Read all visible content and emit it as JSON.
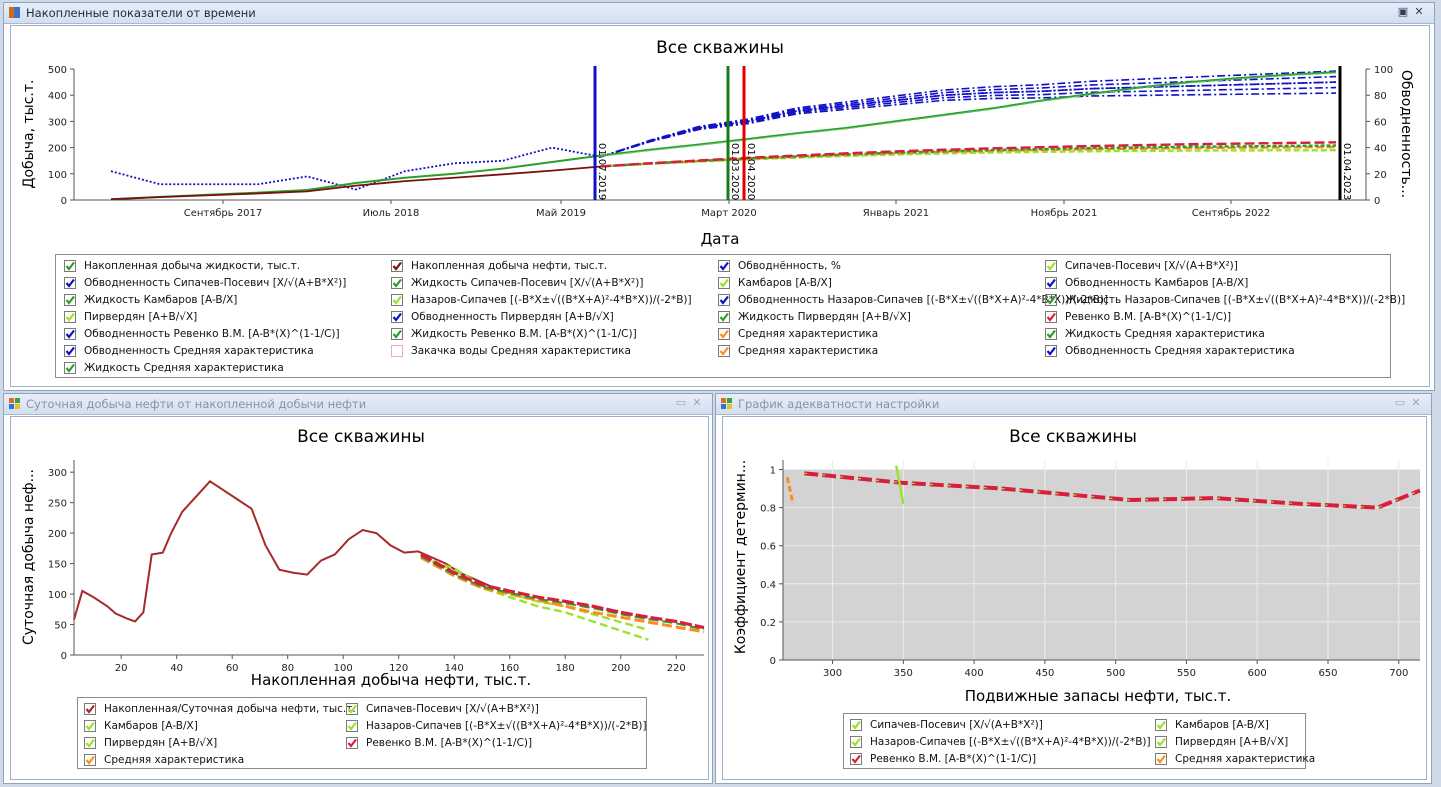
{
  "colors": {
    "blue": "#1010c8",
    "darkred": "#7a1010",
    "green": "#2aa02a",
    "lime": "#9be22a",
    "orange": "#ff8c1a",
    "crimson": "#d81e3c",
    "gray": "#d3d3d3",
    "black": "#000000"
  },
  "top_panel": {
    "title": "Накопленные показатели от времени",
    "chart_title": "Все скважины",
    "xlabel": "Дата",
    "ylabel": "Добыча, тыс.т.",
    "y2label": "Обводненность...",
    "xticks": [
      "Сентябрь 2017",
      "Июль 2018",
      "Май 2019",
      "Март 2020",
      "Январь 2021",
      "Ноябрь 2021",
      "Сентябрь 2022"
    ],
    "yticks": [
      "0",
      "100",
      "200",
      "300",
      "400",
      "500"
    ],
    "y2ticks": [
      "0",
      "20",
      "40",
      "60",
      "80",
      "100"
    ],
    "vlines": [
      {
        "label": "01.07.2019",
        "color": "#1010c8"
      },
      {
        "label": "01.03.2020",
        "color": "#1a7a1a"
      },
      {
        "label": "01.04.2020",
        "color": "#e00000"
      },
      {
        "label": "01.04.2023",
        "color": "#000000"
      }
    ],
    "legend": [
      {
        "label": "Накопленная добыча жидкости, тыс.т.",
        "color": "#2aa02a"
      },
      {
        "label": "Накопленная добыча нефти, тыс.т.",
        "color": "#7a1010"
      },
      {
        "label": "Обводнённость, %",
        "color": "#1010c8"
      },
      {
        "label": "Сипачев-Посевич [X/√(A+B*X²)]",
        "color": "#9be22a"
      },
      {
        "label": "Обводненность Сипачев-Посевич [X/√(A+B*X²)]",
        "color": "#1010c8"
      },
      {
        "label": "Жидкость Сипачев-Посевич [X/√(A+B*X²)]",
        "color": "#2aa02a"
      },
      {
        "label": "Камбаров [A-B/X]",
        "color": "#9be22a"
      },
      {
        "label": "Обводненность Камбаров [A-B/X]",
        "color": "#1010c8"
      },
      {
        "label": "Жидкость Камбаров [A-B/X]",
        "color": "#2aa02a"
      },
      {
        "label": "Назаров-Сипачев [(-B*X±√((B*X+A)²-4*B*X))/(-2*B)]",
        "color": "#9be22a"
      },
      {
        "label": "Обводненность Назаров-Сипачев [(-B*X±√((B*X+A)²-4*B*X))/(-2*B)]",
        "color": "#1010c8"
      },
      {
        "label": "Жидкость Назаров-Сипачев [(-B*X±√((B*X+A)²-4*B*X))/(-2*B)]",
        "color": "#2aa02a"
      },
      {
        "label": "Пирвердян [A+B/√X]",
        "color": "#9be22a"
      },
      {
        "label": "Обводненность Пирвердян [A+B/√X]",
        "color": "#1010c8"
      },
      {
        "label": "Жидкость Пирвердян [A+B/√X]",
        "color": "#2aa02a"
      },
      {
        "label": "Ревенко В.М. [A-B*(X)^(1-1/C)]",
        "color": "#d81e3c"
      },
      {
        "label": "Обводненность Ревенко В.М. [A-B*(X)^(1-1/C)]",
        "color": "#1010c8"
      },
      {
        "label": "Жидкость Ревенко В.М. [A-B*(X)^(1-1/C)]",
        "color": "#2aa02a"
      },
      {
        "label": "Средняя характеристика",
        "color": "#ff8c1a"
      },
      {
        "label": "Жидкость Средняя характеристика",
        "color": "#2aa02a"
      },
      {
        "label": "Обводненность Средняя характеристика",
        "color": "#1010c8"
      },
      {
        "label": "Закачка воды Средняя характеристика",
        "color": "#f4a6c8",
        "unchecked": true
      },
      {
        "label": "Средняя характеристика",
        "color": "#ff8c1a"
      },
      {
        "label": "Обводненность Средняя характеристика",
        "color": "#1010c8"
      },
      {
        "label": "Жидкость Средняя характеристика",
        "color": "#2aa02a"
      }
    ]
  },
  "left_panel": {
    "title": "Суточная добыча нефти от накопленной добычи нефти",
    "chart_title": "Все скважины",
    "xlabel": "Накопленная добыча нефти, тыс.т.",
    "ylabel": "Суточная добыча неф...",
    "xticks": [
      "20",
      "40",
      "60",
      "80",
      "100",
      "120",
      "140",
      "160",
      "180",
      "200",
      "220"
    ],
    "yticks": [
      "0",
      "50",
      "100",
      "150",
      "200",
      "250",
      "300"
    ],
    "legend": [
      {
        "label": "Накопленная/Суточная добыча нефти, тыс.т.",
        "color": "#a52a2a"
      },
      {
        "label": "Сипачев-Посевич [X/√(A+B*X²)]",
        "color": "#9be22a"
      },
      {
        "label": "Камбаров [A-B/X]",
        "color": "#9be22a"
      },
      {
        "label": "Назаров-Сипачев [(-B*X±√((B*X+A)²-4*B*X))/(-2*B)]",
        "color": "#9be22a"
      },
      {
        "label": "Пирвердян [A+B/√X]",
        "color": "#9be22a"
      },
      {
        "label": "Ревенко В.М. [A-B*(X)^(1-1/C)]",
        "color": "#d81e3c"
      },
      {
        "label": "Средняя характеристика",
        "color": "#ff8c1a"
      }
    ]
  },
  "right_panel": {
    "title": "График адекватности настройки",
    "chart_title": "Все скважины",
    "xlabel": "Подвижные запасы нефти, тыс.т.",
    "ylabel": "Коэффициент детермин...",
    "xticks": [
      "300",
      "350",
      "400",
      "450",
      "500",
      "550",
      "600",
      "650",
      "700"
    ],
    "yticks": [
      "0",
      "0.2",
      "0.4",
      "0.6",
      "0.8",
      "1"
    ],
    "legend": [
      {
        "label": "Сипачев-Посевич [X/√(A+B*X²)]",
        "color": "#9be22a"
      },
      {
        "label": "Камбаров [A-B/X]",
        "color": "#9be22a"
      },
      {
        "label": "Назаров-Сипачев [(-B*X±√((B*X+A)²-4*B*X))/(-2*B)]",
        "color": "#9be22a"
      },
      {
        "label": "Пирвердян [A+B/√X]",
        "color": "#9be22a"
      },
      {
        "label": "Ревенко В.М. [A-B*(X)^(1-1/C)]",
        "color": "#d81e3c"
      },
      {
        "label": "Средняя характеристика",
        "color": "#ff8c1a"
      }
    ]
  },
  "chart_data": [
    {
      "type": "line",
      "title": "Все скважины",
      "xlabel": "Дата",
      "ylabel": "Добыча, тыс.т.",
      "y2label": "Обводненность...",
      "ylim": [
        0,
        500
      ],
      "y2lim": [
        0,
        100
      ],
      "x": [
        "2017-02",
        "2017-05",
        "2017-08",
        "2017-11",
        "2018-02",
        "2018-05",
        "2018-08",
        "2018-11",
        "2019-02",
        "2019-05",
        "2019-07",
        "2019-10",
        "2020-01",
        "2020-04",
        "2020-07",
        "2020-10",
        "2021-01",
        "2021-04",
        "2021-07",
        "2021-10",
        "2022-01",
        "2022-04",
        "2022-07",
        "2022-10",
        "2023-01",
        "2023-04"
      ],
      "series": [
        {
          "name": "Накопленная добыча жидкости, тыс.т.",
          "values": [
            3,
            12,
            20,
            28,
            38,
            65,
            85,
            100,
            120,
            145,
            170,
            192,
            212,
            233,
            255,
            275,
            300,
            325,
            350,
            380,
            405,
            430,
            450,
            465,
            478,
            488
          ]
        },
        {
          "name": "Накопленная добыча нефти, тыс.т.",
          "values": [
            3,
            11,
            18,
            25,
            33,
            55,
            72,
            85,
            98,
            112,
            128,
            143,
            155,
            165,
            172,
            180,
            186,
            192,
            197,
            202,
            206,
            210,
            214,
            218,
            222,
            226
          ]
        },
        {
          "name": "Обводнённость, %",
          "axis": "y2",
          "values": [
            22,
            12,
            12,
            12,
            18,
            8,
            22,
            28,
            30,
            40,
            33,
            45,
            55,
            60,
            68,
            72,
            76,
            80,
            82,
            83,
            85,
            86,
            87,
            88,
            89,
            90
          ]
        },
        {
          "name": "Средняя характеристика",
          "values": [
            null,
            null,
            null,
            null,
            null,
            null,
            null,
            null,
            null,
            null,
            128,
            140,
            150,
            160,
            168,
            176,
            183,
            189,
            194,
            198,
            202,
            205,
            208,
            210,
            212,
            214
          ]
        }
      ]
    },
    {
      "type": "line",
      "title": "Все скважины",
      "xlabel": "Накопленная добыча нефти, тыс.т.",
      "ylabel": "Суточная добыча неф...",
      "xlim": [
        3,
        230
      ],
      "ylim": [
        0,
        320
      ],
      "series": [
        {
          "name": "Накопленная/Суточная добыча нефти, тыс.т.",
          "x": [
            3,
            6,
            10,
            15,
            18,
            22,
            25,
            28,
            31,
            35,
            38,
            42,
            47,
            52,
            57,
            62,
            67,
            72,
            77,
            82,
            87,
            92,
            97,
            102,
            107,
            112,
            117,
            122,
            127,
            132,
            137,
            142,
            147,
            152,
            157,
            162
          ],
          "values": [
            58,
            105,
            95,
            80,
            68,
            60,
            55,
            70,
            165,
            168,
            200,
            235,
            260,
            285,
            270,
            255,
            240,
            180,
            140,
            135,
            132,
            155,
            165,
            190,
            205,
            200,
            180,
            168,
            170,
            160,
            150,
            135,
            125,
            115,
            105,
            100
          ]
        },
        {
          "name": "Сипачев-Посевич [X/√(A+B*X²)]",
          "x": [
            128,
            140,
            150,
            160,
            170,
            180,
            190,
            200,
            210
          ],
          "values": [
            160,
            140,
            110,
            95,
            80,
            70,
            55,
            40,
            25
          ]
        },
        {
          "name": "Ревенко В.М. [A-B*(X)^(1-1/C)]",
          "x": [
            128,
            140,
            150,
            160,
            170,
            180,
            190,
            200,
            210,
            220,
            230
          ],
          "values": [
            165,
            135,
            115,
            105,
            95,
            88,
            80,
            70,
            62,
            55,
            45
          ]
        },
        {
          "name": "Средняя характеристика",
          "x": [
            128,
            140,
            150,
            160,
            170,
            180,
            190,
            200,
            210,
            220,
            230
          ],
          "values": [
            160,
            130,
            110,
            100,
            90,
            80,
            70,
            62,
            54,
            46,
            38
          ]
        }
      ]
    },
    {
      "type": "line",
      "title": "Все скважины",
      "xlabel": "Подвижные запасы нефти, тыс.т.",
      "ylabel": "Коэффициент детермин...",
      "xlim": [
        265,
        715
      ],
      "ylim": [
        0,
        1.05
      ],
      "series": [
        {
          "name": "Ревенко В.М. [A-B*(X)^(1-1/C)]",
          "x": [
            280,
            350,
            420,
            510,
            570,
            630,
            685,
            715
          ],
          "values": [
            0.98,
            0.93,
            0.9,
            0.84,
            0.85,
            0.82,
            0.8,
            0.89
          ]
        },
        {
          "name": "Средняя характеристика",
          "x": [
            268,
            272
          ],
          "values": [
            0.96,
            0.82
          ]
        },
        {
          "name": "Сипачев-Посевич [X/√(A+B*X²)]",
          "x": [
            345,
            348,
            350
          ],
          "values": [
            1.02,
            0.9,
            0.82
          ]
        }
      ]
    }
  ]
}
